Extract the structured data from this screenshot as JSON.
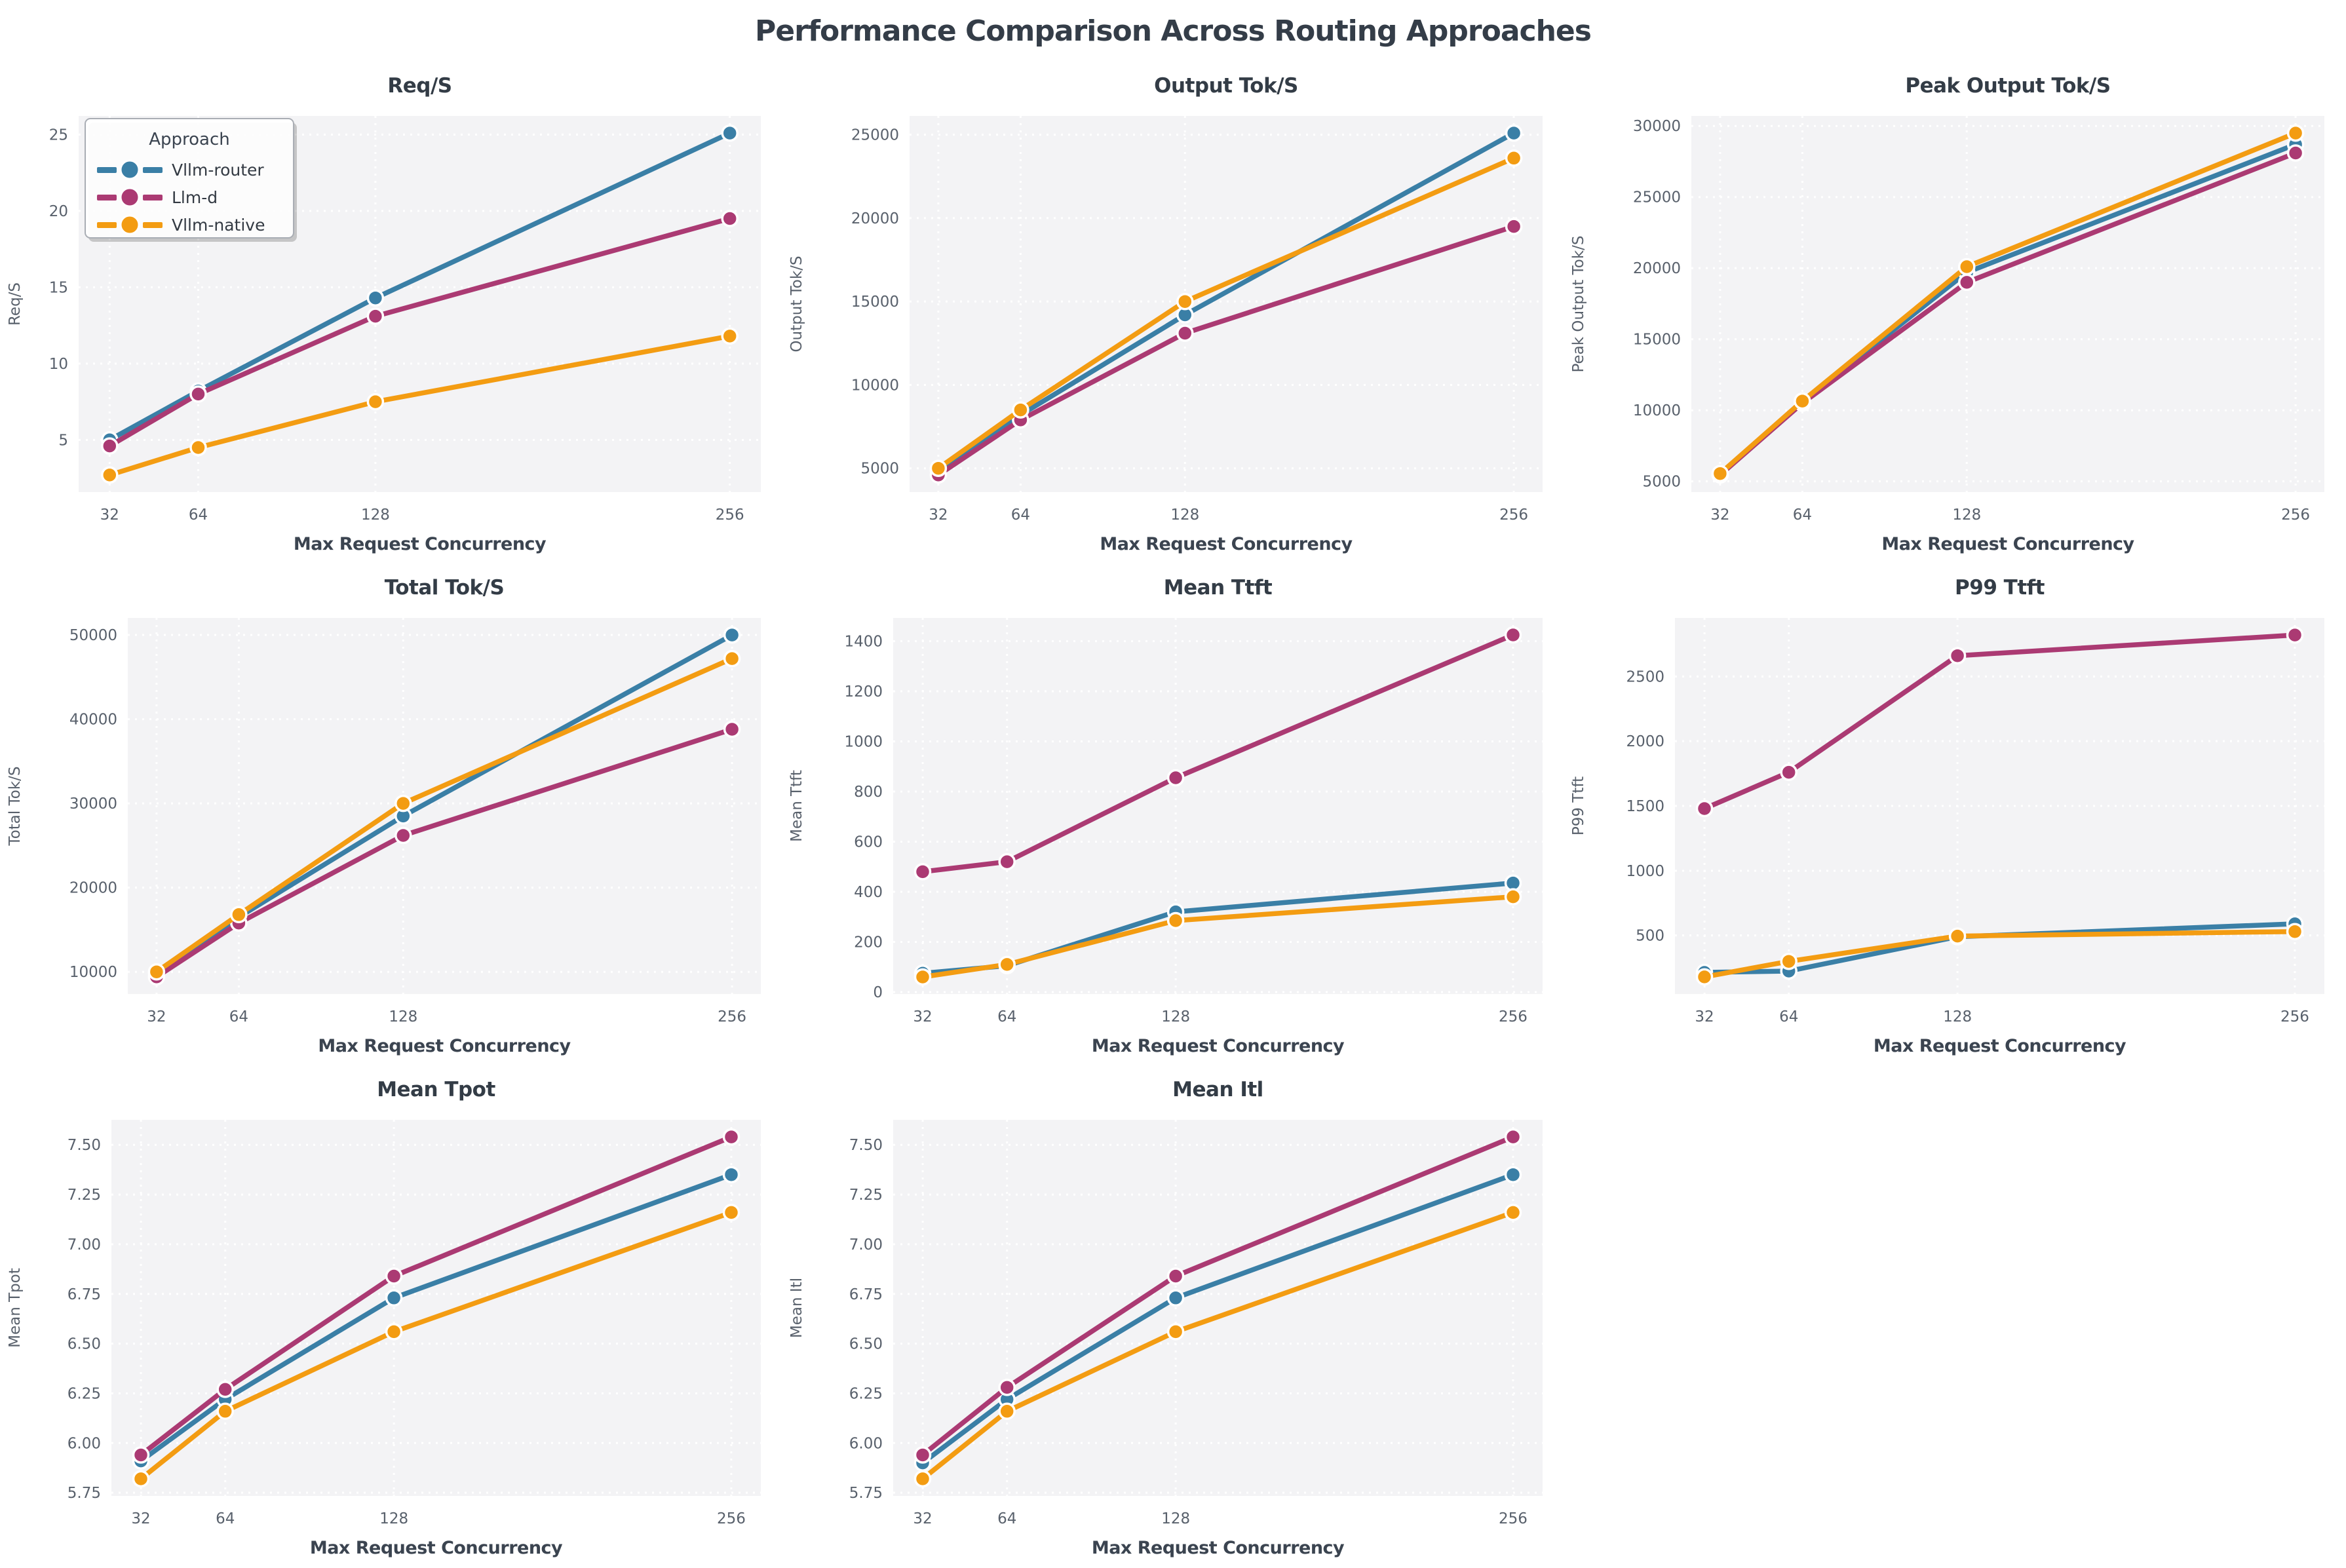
{
  "page_title": "Performance Comparison Across Routing Approaches",
  "colors": {
    "router": "#3a7fa6",
    "llmd": "#ab3a73",
    "native": "#f39c12",
    "plot_bg": "#f3f3f5",
    "grid_line": "#ffffff",
    "title_text": "#333c46",
    "tick_text": "#59616c",
    "axis_label_text": "#3b4450"
  },
  "legend": {
    "title": "Approach",
    "entries": [
      {
        "label": "Vllm-router",
        "color_key": "router"
      },
      {
        "label": "Llm-d",
        "color_key": "llmd"
      },
      {
        "label": "Vllm-native",
        "color_key": "native"
      }
    ]
  },
  "x_axis": {
    "label": "Max Request Concurrency",
    "ticks": [
      32,
      64,
      128,
      256
    ],
    "tick_labels": [
      "32",
      "64",
      "128",
      "256"
    ]
  },
  "chart_data": [
    {
      "type": "line",
      "title": "Req/S",
      "ylabel": "Req/S",
      "xlabel": "Max Request Concurrency",
      "x": [
        32,
        64,
        128,
        256
      ],
      "ylim": [
        1.58,
        26.22
      ],
      "yticks": [
        5,
        10,
        15,
        20,
        25
      ],
      "ytick_labels": [
        "5",
        "10",
        "15",
        "20",
        "25"
      ],
      "legend_position": "upper-left",
      "series": [
        {
          "name": "Vllm-router",
          "color_key": "router",
          "values": [
            5.0,
            8.2,
            14.3,
            25.1
          ]
        },
        {
          "name": "Llm-d",
          "color_key": "llmd",
          "values": [
            4.6,
            8.0,
            13.1,
            19.5
          ]
        },
        {
          "name": "Vllm-native",
          "color_key": "native",
          "values": [
            2.7,
            4.5,
            7.5,
            11.8
          ]
        }
      ]
    },
    {
      "type": "line",
      "title": "Output Tok/S",
      "ylabel": "Output Tok/S",
      "xlabel": "Max Request Concurrency",
      "x": [
        32,
        64,
        128,
        256
      ],
      "ylim": [
        3575,
        26125
      ],
      "yticks": [
        5000,
        10000,
        15000,
        20000,
        25000
      ],
      "ytick_labels": [
        "5000",
        "10000",
        "15000",
        "20000",
        "25000"
      ],
      "series": [
        {
          "name": "Vllm-router",
          "color_key": "router",
          "values": [
            4900,
            8200,
            14200,
            25100
          ]
        },
        {
          "name": "Llm-d",
          "color_key": "llmd",
          "values": [
            4600,
            7900,
            13100,
            19500
          ]
        },
        {
          "name": "Vllm-native",
          "color_key": "native",
          "values": [
            5000,
            8500,
            15000,
            23600
          ]
        }
      ]
    },
    {
      "type": "line",
      "title": "Peak Output Tok/S",
      "ylabel": "Peak Output Tok/S",
      "xlabel": "Max Request Concurrency",
      "x": [
        32,
        64,
        128,
        256
      ],
      "ylim": [
        4248,
        30702
      ],
      "yticks": [
        5000,
        10000,
        15000,
        20000,
        25000,
        30000
      ],
      "ytick_labels": [
        "5000",
        "10000",
        "15000",
        "20000",
        "25000",
        "30000"
      ],
      "series": [
        {
          "name": "Vllm-router",
          "color_key": "router",
          "values": [
            5500,
            10600,
            19700,
            28700
          ]
        },
        {
          "name": "Llm-d",
          "color_key": "llmd",
          "values": [
            5450,
            10500,
            19000,
            28100
          ]
        },
        {
          "name": "Vllm-native",
          "color_key": "native",
          "values": [
            5550,
            10650,
            20100,
            29500
          ]
        }
      ]
    },
    {
      "type": "line",
      "title": "Total Tok/S",
      "ylabel": "Total Tok/S",
      "xlabel": "Max Request Concurrency",
      "x": [
        32,
        64,
        128,
        256
      ],
      "ylim": [
        7370,
        52030
      ],
      "yticks": [
        10000,
        20000,
        30000,
        40000,
        50000
      ],
      "ytick_labels": [
        "10000",
        "20000",
        "30000",
        "40000",
        "50000"
      ],
      "series": [
        {
          "name": "Vllm-router",
          "color_key": "router",
          "values": [
            9900,
            16500,
            28500,
            50000
          ]
        },
        {
          "name": "Llm-d",
          "color_key": "llmd",
          "values": [
            9400,
            15800,
            26200,
            38800
          ]
        },
        {
          "name": "Vllm-native",
          "color_key": "native",
          "values": [
            10000,
            16800,
            30000,
            47200
          ]
        }
      ]
    },
    {
      "type": "line",
      "title": "Mean Ttft",
      "ylabel": "Mean Ttft",
      "xlabel": "Max Request Concurrency",
      "x": [
        32,
        64,
        128,
        256
      ],
      "ylim": [
        -8,
        1493
      ],
      "yticks": [
        0,
        200,
        400,
        600,
        800,
        1000,
        1200,
        1400
      ],
      "ytick_labels": [
        "0",
        "200",
        "400",
        "600",
        "800",
        "1000",
        "1200",
        "1400"
      ],
      "series": [
        {
          "name": "Vllm-router",
          "color_key": "router",
          "values": [
            75,
            105,
            320,
            435
          ]
        },
        {
          "name": "Llm-d",
          "color_key": "llmd",
          "values": [
            480,
            520,
            855,
            1425
          ]
        },
        {
          "name": "Vllm-native",
          "color_key": "native",
          "values": [
            60,
            110,
            285,
            380
          ]
        }
      ]
    },
    {
      "type": "line",
      "title": "P99 Ttft",
      "ylabel": "P99 Ttft",
      "xlabel": "Max Request Concurrency",
      "x": [
        32,
        64,
        128,
        256
      ],
      "ylim": [
        48,
        2952
      ],
      "yticks": [
        500,
        1000,
        1500,
        2000,
        2500
      ],
      "ytick_labels": [
        "500",
        "1000",
        "1500",
        "2000",
        "2500"
      ],
      "series": [
        {
          "name": "Vllm-router",
          "color_key": "router",
          "values": [
            215,
            225,
            490,
            590
          ]
        },
        {
          "name": "Llm-d",
          "color_key": "llmd",
          "values": [
            1480,
            1760,
            2660,
            2820
          ]
        },
        {
          "name": "Vllm-native",
          "color_key": "native",
          "values": [
            180,
            300,
            495,
            530
          ]
        }
      ]
    },
    {
      "type": "line",
      "title": "Mean Tpot",
      "ylabel": "Mean Tpot",
      "xlabel": "Max Request Concurrency",
      "x": [
        32,
        64,
        128,
        256
      ],
      "ylim": [
        5.734,
        7.626
      ],
      "yticks": [
        5.75,
        6.0,
        6.25,
        6.5,
        6.75,
        7.0,
        7.25,
        7.5
      ],
      "ytick_labels": [
        "5.75",
        "6.00",
        "6.25",
        "6.50",
        "6.75",
        "7.00",
        "7.25",
        "7.50"
      ],
      "series": [
        {
          "name": "Vllm-router",
          "color_key": "router",
          "values": [
            5.91,
            6.22,
            6.73,
            7.35
          ]
        },
        {
          "name": "Llm-d",
          "color_key": "llmd",
          "values": [
            5.94,
            6.27,
            6.84,
            7.54
          ]
        },
        {
          "name": "Vllm-native",
          "color_key": "native",
          "values": [
            5.82,
            6.16,
            6.56,
            7.16
          ]
        }
      ]
    },
    {
      "type": "line",
      "title": "Mean Itl",
      "ylabel": "Mean Itl",
      "xlabel": "Max Request Concurrency",
      "x": [
        32,
        64,
        128,
        256
      ],
      "ylim": [
        5.734,
        7.626
      ],
      "yticks": [
        5.75,
        6.0,
        6.25,
        6.5,
        6.75,
        7.0,
        7.25,
        7.5
      ],
      "ytick_labels": [
        "5.75",
        "6.00",
        "6.25",
        "6.50",
        "6.75",
        "7.00",
        "7.25",
        "7.50"
      ],
      "series": [
        {
          "name": "Vllm-router",
          "color_key": "router",
          "values": [
            5.9,
            6.22,
            6.73,
            7.35
          ]
        },
        {
          "name": "Llm-d",
          "color_key": "llmd",
          "values": [
            5.94,
            6.28,
            6.84,
            7.54
          ]
        },
        {
          "name": "Vllm-native",
          "color_key": "native",
          "values": [
            5.82,
            6.16,
            6.56,
            7.16
          ]
        }
      ]
    }
  ]
}
